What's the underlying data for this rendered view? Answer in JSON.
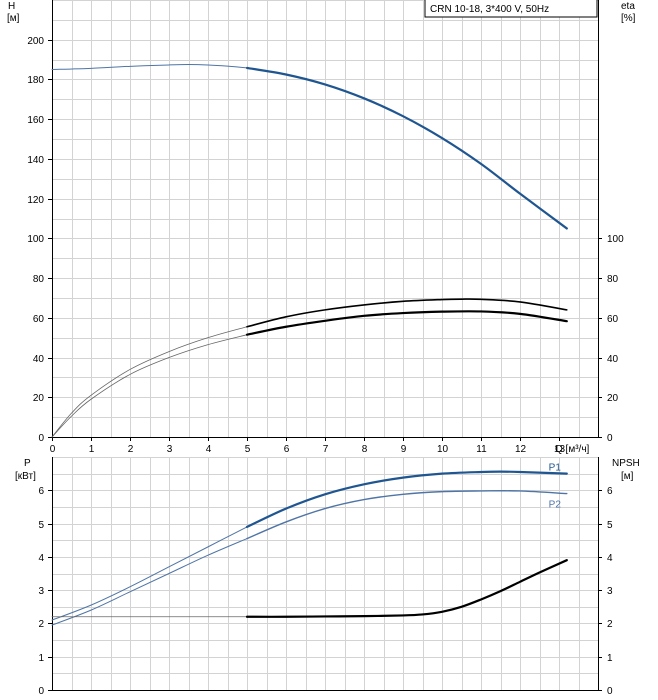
{
  "chart_data": {
    "type": "line",
    "title": "CRN 10-18, 3*400 V, 50Hz",
    "x_label": "Q [м³/ч]",
    "x_range": [
      0,
      14
    ],
    "x_ticks": [
      0,
      1,
      2,
      3,
      4,
      5,
      6,
      7,
      8,
      9,
      10,
      11,
      12,
      13
    ],
    "colors": {
      "blue": "#1f5691",
      "light_blue": "#4f74a6",
      "black": "#000000",
      "grey": "#666666",
      "grid": "#d3d3d3"
    },
    "top_panel": {
      "left_axis": {
        "name": "H",
        "unit": "[м]",
        "range": [
          0,
          220
        ],
        "ticks": [
          0,
          20,
          40,
          60,
          80,
          100,
          120,
          140,
          160,
          180,
          200
        ]
      },
      "right_axis": {
        "name": "eta",
        "unit": "[%]",
        "range": [
          0,
          220
        ],
        "ticks": [
          0,
          20,
          40,
          60,
          80,
          100
        ]
      },
      "series": [
        {
          "role": "head-thin",
          "axis": "left",
          "color": "#4f74a6",
          "width": 1,
          "x": [
            0,
            1,
            2,
            3,
            3.5,
            4,
            4.5,
            5
          ],
          "y": [
            185,
            185.6,
            186.6,
            187.3,
            187.5,
            187.3,
            186.7,
            185.8
          ]
        },
        {
          "role": "head-bold",
          "axis": "left",
          "color": "#1f5691",
          "width": 2.2,
          "x": [
            5,
            6,
            7,
            8,
            9,
            10,
            11,
            12,
            13.2
          ],
          "y": [
            185.8,
            182.5,
            177.5,
            170.5,
            161.5,
            150.5,
            137.5,
            122.5,
            105
          ]
        },
        {
          "role": "eta-upper-thin",
          "axis": "right",
          "color": "#666666",
          "width": 0.8,
          "x": [
            0,
            0.5,
            1,
            2,
            3,
            4,
            5
          ],
          "y": [
            0,
            12,
            21,
            34,
            43,
            50,
            55.5
          ]
        },
        {
          "role": "eta-upper-bold",
          "axis": "right",
          "color": "#000000",
          "width": 1.6,
          "x": [
            5,
            6,
            7,
            8,
            9,
            10,
            10.5,
            11,
            12,
            13.2
          ],
          "y": [
            55.5,
            60.5,
            64,
            66.5,
            68.3,
            69.2,
            69.4,
            69.3,
            68,
            64
          ]
        },
        {
          "role": "eta-lower-thin",
          "axis": "right",
          "color": "#666666",
          "width": 0.8,
          "x": [
            0,
            0.5,
            1,
            2,
            3,
            4,
            5
          ],
          "y": [
            0,
            10.5,
            19,
            31.5,
            40,
            46.5,
            51.5
          ]
        },
        {
          "role": "eta-lower-bold",
          "axis": "right",
          "color": "#000000",
          "width": 2.2,
          "x": [
            5,
            6,
            7,
            8,
            9,
            10,
            11,
            12,
            13.2
          ],
          "y": [
            51.5,
            55.5,
            58.5,
            61,
            62.4,
            63.1,
            63.2,
            62,
            58.3
          ]
        }
      ]
    },
    "bottom_panel": {
      "left_axis": {
        "name": "P",
        "unit": "[кВт]",
        "range": [
          0,
          7
        ],
        "ticks": [
          0,
          1,
          2,
          3,
          4,
          5,
          6
        ]
      },
      "right_axis": {
        "name": "NPSH",
        "unit": "[м]",
        "range": [
          0,
          7
        ],
        "ticks": [
          0,
          1,
          2,
          3,
          4,
          5,
          6
        ]
      },
      "series": [
        {
          "name": "P1",
          "role": "p1-thin",
          "axis": "left",
          "color": "#4f74a6",
          "width": 1,
          "x": [
            0,
            1,
            2,
            3,
            4,
            5
          ],
          "y": [
            2.1,
            2.55,
            3.1,
            3.7,
            4.3,
            4.9
          ]
        },
        {
          "name": "P1",
          "role": "p1-bold",
          "axis": "left",
          "color": "#1f5691",
          "width": 2.2,
          "label_at_end": true,
          "x": [
            5,
            6,
            7,
            8,
            9,
            10,
            11,
            11.5,
            12,
            13.2
          ],
          "y": [
            4.9,
            5.45,
            5.88,
            6.18,
            6.38,
            6.5,
            6.55,
            6.56,
            6.55,
            6.5
          ]
        },
        {
          "name": "P2",
          "role": "p2-thin",
          "axis": "left",
          "color": "#4f74a6",
          "width": 1,
          "x": [
            0,
            1,
            2,
            3,
            4,
            5
          ],
          "y": [
            1.95,
            2.4,
            2.95,
            3.5,
            4.05,
            4.55
          ]
        },
        {
          "name": "P2",
          "role": "p2-bold",
          "axis": "left",
          "color": "#4f74a6",
          "width": 1.4,
          "label_at_end": true,
          "x": [
            5,
            6,
            7,
            8,
            9,
            10,
            11,
            12,
            13.2
          ],
          "y": [
            4.55,
            5.05,
            5.45,
            5.72,
            5.88,
            5.96,
            5.98,
            5.98,
            5.9
          ]
        },
        {
          "role": "npsh-thin",
          "axis": "right",
          "color": "#666666",
          "width": 0.8,
          "x": [
            0,
            1,
            2,
            3,
            4,
            5
          ],
          "y": [
            2.2,
            2.2,
            2.2,
            2.2,
            2.2,
            2.2
          ]
        },
        {
          "role": "npsh-bold",
          "axis": "right",
          "color": "#000000",
          "width": 2.2,
          "x": [
            5,
            6,
            7,
            8,
            9,
            9.5,
            10,
            10.5,
            11,
            11.5,
            12,
            12.5,
            13.2
          ],
          "y": [
            2.2,
            2.2,
            2.21,
            2.22,
            2.24,
            2.27,
            2.35,
            2.5,
            2.72,
            2.97,
            3.25,
            3.53,
            3.9
          ]
        }
      ]
    }
  }
}
